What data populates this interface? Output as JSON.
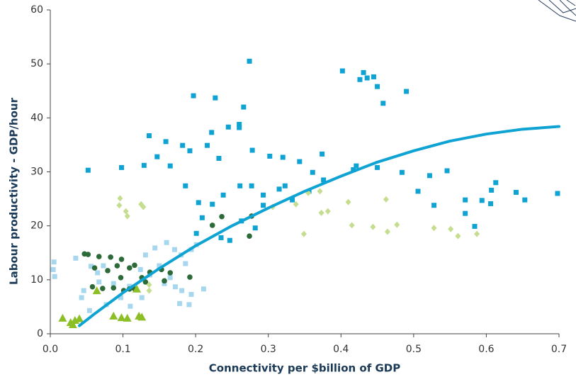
{
  "chart_data": {
    "type": "scatter",
    "x_label": "Connectivity per $billion of GDP",
    "y_label": "Labour productivity - GDP/hour",
    "xlim": [
      0,
      0.7
    ],
    "ylim": [
      0,
      60
    ],
    "xticks": [
      {
        "value": 0,
        "label": "0.0"
      },
      0.1,
      0.2,
      0.3,
      0.4,
      0.5,
      0.6,
      0.7
    ],
    "yticks": [
      0,
      10,
      20,
      30,
      40,
      50,
      60
    ],
    "series": [
      {
        "color": "#0fa3d4",
        "marker": "square",
        "x": [
          0.274,
          0.197,
          0.227,
          0.266,
          0.402,
          0.431,
          0.426,
          0.445,
          0.436,
          0.45,
          0.49,
          0.458,
          0.26,
          0.245,
          0.26,
          0.222,
          0.136,
          0.159,
          0.182,
          0.192,
          0.147,
          0.216,
          0.052,
          0.098,
          0.129,
          0.165,
          0.232,
          0.278,
          0.302,
          0.32,
          0.343,
          0.374,
          0.361,
          0.421,
          0.45,
          0.484,
          0.522,
          0.546,
          0.506,
          0.528,
          0.571,
          0.594,
          0.613,
          0.607,
          0.641,
          0.653,
          0.698,
          0.571,
          0.584,
          0.606,
          0.186,
          0.204,
          0.223,
          0.238,
          0.261,
          0.277,
          0.293,
          0.323,
          0.333,
          0.282,
          0.235,
          0.247,
          0.263,
          0.209,
          0.201,
          0.293,
          0.315,
          0.356,
          0.376,
          0.417
        ],
        "values": [
          50.5,
          44.1,
          43.7,
          42,
          48.7,
          48.4,
          47.1,
          47.6,
          47.4,
          45.8,
          44.9,
          42.7,
          38.8,
          38.3,
          38.2,
          37.3,
          36.7,
          35.6,
          34.9,
          33.9,
          32.8,
          34.9,
          30.3,
          30.8,
          31.2,
          31.1,
          32.5,
          34,
          32.9,
          32.7,
          31.9,
          33.3,
          29.9,
          31.1,
          30.8,
          29.9,
          29.3,
          30.2,
          26.4,
          23.8,
          24.8,
          24.7,
          28,
          26.6,
          26.2,
          24.8,
          26,
          22.3,
          19.9,
          24.1,
          27.4,
          24.3,
          24,
          25.7,
          27.4,
          27.4,
          25.7,
          27.4,
          24.8,
          19.6,
          17.8,
          17.3,
          20.9,
          21.5,
          18.6,
          23.8,
          26.8,
          26.4,
          28.5,
          30.4
        ]
      },
      {
        "color": "#a6d7ee",
        "marker": "square",
        "x": [
          0.005,
          0.006,
          0.004,
          0.035,
          0.056,
          0.067,
          0.046,
          0.077,
          0.097,
          0.11,
          0.087,
          0.124,
          0.131,
          0.144,
          0.16,
          0.171,
          0.18,
          0.186,
          0.194,
          0.201,
          0.165,
          0.157,
          0.172,
          0.181,
          0.178,
          0.191,
          0.194,
          0.211,
          0.137,
          0.109,
          0.073,
          0.065,
          0.043,
          0.054,
          0.126,
          0.15
        ],
        "values": [
          13.3,
          10.6,
          11.9,
          14,
          12.5,
          9.6,
          8,
          5.4,
          6.7,
          5.1,
          9.3,
          11.9,
          14.6,
          15.9,
          16.9,
          15.6,
          14.6,
          13,
          15.6,
          16.5,
          10.4,
          9.3,
          8.7,
          8,
          5.6,
          5.4,
          7.3,
          8.3,
          10.9,
          8.8,
          12.6,
          11.3,
          6.7,
          4.3,
          6.7,
          12.6
        ]
      },
      {
        "color": "#2d6a3a",
        "marker": "circle",
        "x": [
          0.047,
          0.052,
          0.067,
          0.083,
          0.098,
          0.061,
          0.079,
          0.092,
          0.116,
          0.109,
          0.058,
          0.072,
          0.087,
          0.101,
          0.116,
          0.131,
          0.126,
          0.137,
          0.153,
          0.165,
          0.192,
          0.157,
          0.236,
          0.223,
          0.277,
          0.274,
          0.097,
          0.109
        ],
        "values": [
          14.8,
          14.7,
          14.3,
          14.2,
          13.8,
          12.2,
          11.7,
          12.6,
          12.7,
          12.2,
          8.7,
          8.4,
          8.5,
          8,
          8.3,
          9.6,
          10.4,
          11.4,
          11.9,
          11.3,
          10.5,
          9.8,
          21.7,
          20.1,
          21.8,
          18.1,
          10.4,
          8.3
        ]
      },
      {
        "color": "#c5dd8e",
        "marker": "diamond",
        "x": [
          0.096,
          0.095,
          0.104,
          0.106,
          0.125,
          0.128,
          0.306,
          0.338,
          0.355,
          0.371,
          0.373,
          0.382,
          0.41,
          0.415,
          0.444,
          0.462,
          0.464,
          0.477,
          0.528,
          0.551,
          0.561,
          0.587,
          0.349,
          0.136,
          0.136
        ],
        "values": [
          25.1,
          23.8,
          22.7,
          21.8,
          24,
          23.5,
          23.5,
          24,
          26.1,
          26.4,
          22.4,
          22.7,
          24.4,
          20.1,
          19.8,
          24.9,
          18.9,
          20.2,
          19.6,
          19.4,
          18.1,
          18.5,
          18.5,
          8,
          9.1
        ]
      },
      {
        "color": "#8cbf26",
        "marker": "triangle",
        "x": [
          0.017,
          0.028,
          0.034,
          0.031,
          0.04,
          0.087,
          0.098,
          0.106,
          0.122,
          0.126,
          0.064,
          0.119
        ],
        "values": [
          2.9,
          2.1,
          2.5,
          1.7,
          2.8,
          3.3,
          3,
          2.9,
          3.3,
          3.1,
          8,
          8.3
        ]
      },
      {
        "color": "#0fa3d4",
        "marker": "line",
        "x": [
          0.04,
          0.06,
          0.08,
          0.1,
          0.12,
          0.15,
          0.2,
          0.25,
          0.3,
          0.35,
          0.4,
          0.45,
          0.5,
          0.55,
          0.6,
          0.65,
          0.7
        ],
        "values": [
          1.5,
          3.6,
          5.6,
          7.6,
          9.4,
          12.1,
          16.3,
          20,
          23.3,
          26.4,
          29.2,
          31.8,
          33.9,
          35.7,
          37,
          37.9,
          38.4
        ]
      }
    ]
  }
}
